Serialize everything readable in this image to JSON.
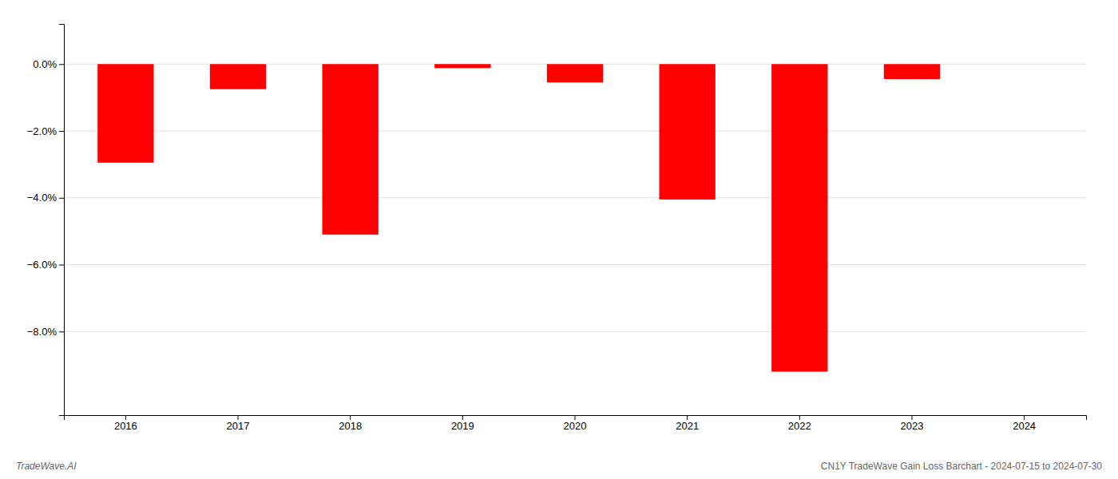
{
  "chart_data": {
    "type": "bar",
    "categories": [
      "2016",
      "2017",
      "2018",
      "2019",
      "2020",
      "2021",
      "2022",
      "2023",
      "2024"
    ],
    "values": [
      -2.95,
      -0.75,
      -5.1,
      -0.12,
      -0.55,
      -4.05,
      -9.2,
      -0.45,
      0.0
    ],
    "color": "#ff0000",
    "ylim": [
      -10.5,
      1.2
    ],
    "yticks": [
      {
        "value": 0.0,
        "label": "0.0%"
      },
      {
        "value": -2.0,
        "label": "−2.0%"
      },
      {
        "value": -4.0,
        "label": "−4.0%"
      },
      {
        "value": -6.0,
        "label": "−6.0%"
      },
      {
        "value": -8.0,
        "label": "−8.0%"
      }
    ],
    "grid": true,
    "annotations": [
      "TradeWave.AI",
      "CN1Y TradeWave Gain Loss Barchart - 2024-07-15 to 2024-07-30"
    ]
  }
}
